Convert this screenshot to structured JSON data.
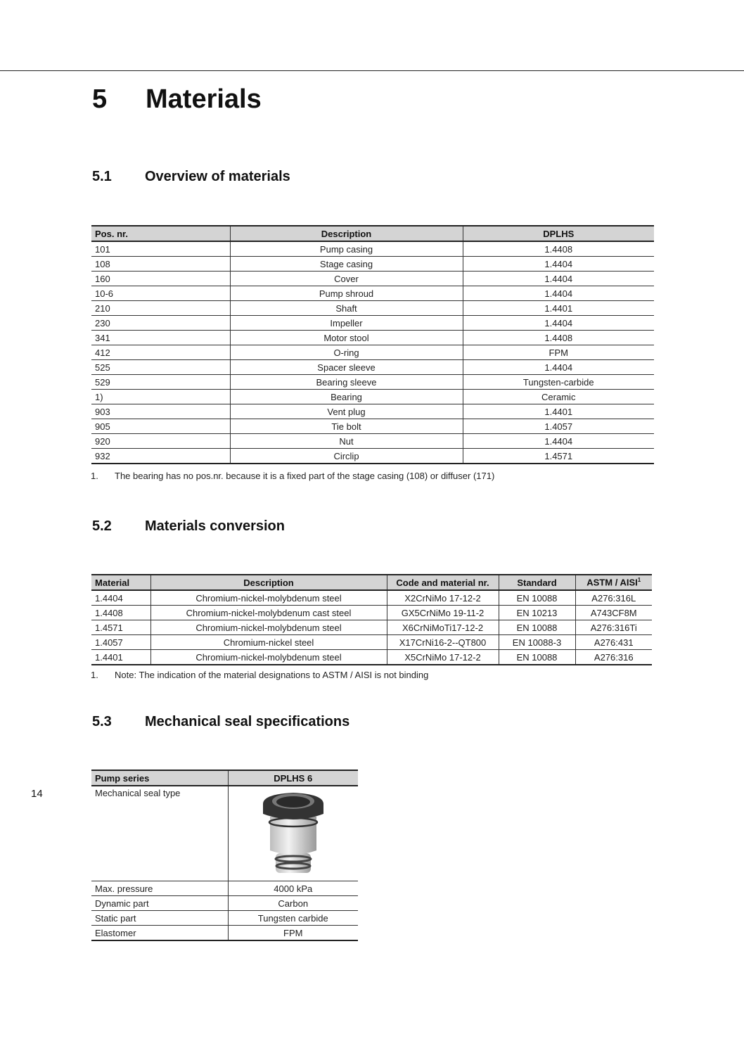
{
  "chapter": {
    "number": "5",
    "title": "Materials"
  },
  "page_number": "14",
  "s1": {
    "number": "5.1",
    "title": "Overview of materials",
    "headers": [
      "Pos. nr.",
      "Description",
      "DPLHS"
    ],
    "rows": [
      [
        "101",
        "Pump casing",
        "1.4408"
      ],
      [
        "108",
        "Stage casing",
        "1.4404"
      ],
      [
        "160",
        "Cover",
        "1.4404"
      ],
      [
        "10-6",
        "Pump shroud",
        "1.4404"
      ],
      [
        "210",
        "Shaft",
        "1.4401"
      ],
      [
        "230",
        "Impeller",
        "1.4404"
      ],
      [
        "341",
        "Motor stool",
        "1.4408"
      ],
      [
        "412",
        "O-ring",
        "FPM"
      ],
      [
        "525",
        "Spacer sleeve",
        "1.4404"
      ],
      [
        "529",
        "Bearing sleeve",
        "Tungsten-carbide"
      ],
      [
        "1)",
        "Bearing",
        "Ceramic"
      ],
      [
        "903",
        "Vent plug",
        "1.4401"
      ],
      [
        "905",
        "Tie bolt",
        "1.4057"
      ],
      [
        "920",
        "Nut",
        "1.4404"
      ],
      [
        "932",
        "Circlip",
        "1.4571"
      ]
    ],
    "footnote_num": "1.",
    "footnote": "The bearing has no pos.nr. because it is a fixed part of the stage casing (108) or diffuser (171)"
  },
  "s2": {
    "number": "5.2",
    "title": "Materials conversion",
    "headers": [
      "Material",
      "Description",
      "Code and material nr.",
      "Standard",
      "ASTM / AISI"
    ],
    "header_sup": "1",
    "rows": [
      [
        "1.4404",
        "Chromium-nickel-molybdenum steel",
        "X2CrNiMo 17-12-2",
        "EN 10088",
        "A276:316L"
      ],
      [
        "1.4408",
        "Chromium-nickel-molybdenum cast steel",
        "GX5CrNiMo 19-11-2",
        "EN 10213",
        "A743CF8M"
      ],
      [
        "1.4571",
        "Chromium-nickel-molybdenum steel",
        "X6CrNiMoTi17-12-2",
        "EN 10088",
        "A276:316Ti"
      ],
      [
        "1.4057",
        "Chromium-nickel steel",
        "X17CrNi16-2--QT800",
        "EN 10088-3",
        "A276:431"
      ],
      [
        "1.4401",
        "Chromium-nickel-molybdenum steel",
        "X5CrNiMo 17-12-2",
        "EN 10088",
        "A276:316"
      ]
    ],
    "footnote_num": "1.",
    "footnote": "Note: The indication of the material designations to ASTM / AISI is not binding"
  },
  "s3": {
    "number": "5.3",
    "title": "Mechanical seal specifications",
    "headers": [
      "Pump series",
      "DPLHS 6"
    ],
    "seal_type_label": "Mechanical seal type",
    "rows": [
      [
        "Max. pressure",
        "4000 kPa"
      ],
      [
        "Dynamic part",
        "Carbon"
      ],
      [
        "Static part",
        "Tungsten carbide"
      ],
      [
        "Elastomer",
        "FPM"
      ]
    ]
  }
}
